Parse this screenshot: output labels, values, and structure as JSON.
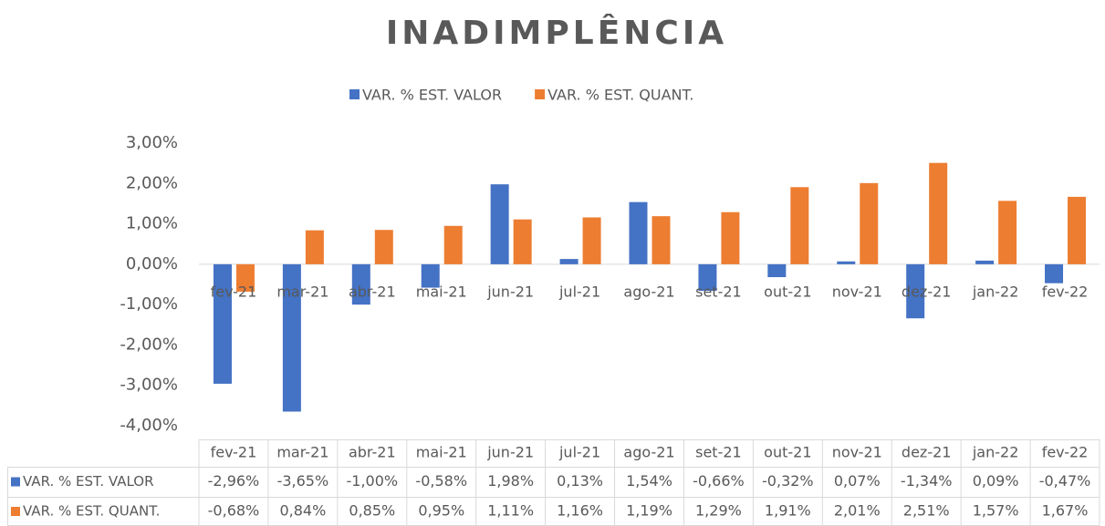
{
  "chart_data": {
    "type": "bar",
    "title": "INADIMPLÊNCIA",
    "categories": [
      "fev-21",
      "mar-21",
      "abr-21",
      "mai-21",
      "jun-21",
      "jul-21",
      "ago-21",
      "set-21",
      "out-21",
      "nov-21",
      "dez-21",
      "jan-22",
      "fev-22"
    ],
    "series": [
      {
        "name": "VAR. % EST. VALOR",
        "color": "#4472c4",
        "values": [
          -2.96,
          -3.65,
          -1.0,
          -0.58,
          1.98,
          0.13,
          1.54,
          -0.66,
          -0.32,
          0.07,
          -1.34,
          0.09,
          -0.47
        ],
        "value_labels": [
          "-2,96%",
          "-3,65%",
          "-1,00%",
          "-0,58%",
          "1,98%",
          "0,13%",
          "1,54%",
          "-0,66%",
          "-0,32%",
          "0,07%",
          "-1,34%",
          "0,09%",
          "-0,47%"
        ]
      },
      {
        "name": "VAR. % EST. QUANT.",
        "color": "#ed7d31",
        "values": [
          -0.68,
          0.84,
          0.85,
          0.95,
          1.11,
          1.16,
          1.19,
          1.29,
          1.91,
          2.01,
          2.51,
          1.57,
          1.67
        ],
        "value_labels": [
          "-0,68%",
          "0,84%",
          "0,85%",
          "0,95%",
          "1,11%",
          "1,16%",
          "1,19%",
          "1,29%",
          "1,91%",
          "2,01%",
          "2,51%",
          "1,57%",
          "1,67%"
        ]
      }
    ],
    "ylim": [
      -4,
      3
    ],
    "yticks": [
      {
        "value": -4,
        "label": "-4,00%"
      },
      {
        "value": -3,
        "label": "-3,00%"
      },
      {
        "value": -2,
        "label": "-2,00%"
      },
      {
        "value": -1,
        "label": "-1,00%"
      },
      {
        "value": 0,
        "label": "0,00%"
      },
      {
        "value": 1,
        "label": "1,00%"
      },
      {
        "value": 2,
        "label": "2,00%"
      },
      {
        "value": 3,
        "label": "3,00%"
      }
    ],
    "legend": "top"
  }
}
